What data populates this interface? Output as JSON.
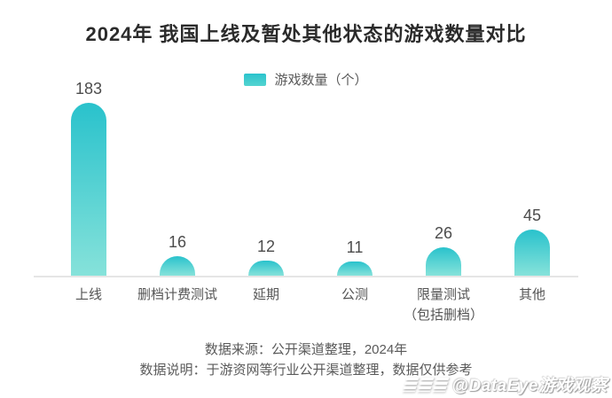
{
  "chart_data": {
    "type": "bar",
    "title": "2024年 我国上线及暂处其他状态的游戏数量对比",
    "legend": "游戏数量（个）",
    "legend_position": "top-center",
    "categories": [
      "上线",
      "删档计费测试",
      "延期",
      "公测",
      "限量测试（包括删档）",
      "其他"
    ],
    "category_lines": [
      [
        "上线"
      ],
      [
        "删档计费测试"
      ],
      [
        "延期"
      ],
      [
        "公测"
      ],
      [
        "限量测试",
        "（包括删档）"
      ],
      [
        "其他"
      ]
    ],
    "values": [
      183,
      16,
      12,
      11,
      26,
      45
    ],
    "ylim": [
      0,
      200
    ],
    "grid": false,
    "bar_color_top": "#29c2cc",
    "bar_color_bottom": "#86e2da",
    "axis_line_color": "#e5e5e5",
    "value_label_color": "#4c4c4c"
  },
  "footer": {
    "source_line": "数据来源：公开渠道整理，2024年",
    "note_line": "数据说明：于游资网等行业公开渠道整理，数据仅供参考"
  },
  "watermark": {
    "handle": "@DataEye游戏观察"
  }
}
